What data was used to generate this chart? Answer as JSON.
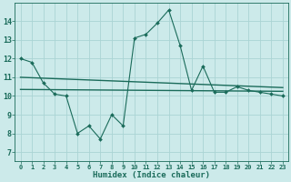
{
  "title": "",
  "xlabel": "Humidex (Indice chaleur)",
  "bg_color": "#cceaea",
  "grid_color": "#aad4d4",
  "line_color": "#1a6b5a",
  "xlim": [
    -0.5,
    23.5
  ],
  "ylim": [
    6.5,
    15.0
  ],
  "xticks": [
    0,
    1,
    2,
    3,
    4,
    5,
    6,
    7,
    8,
    9,
    10,
    11,
    12,
    13,
    14,
    15,
    16,
    17,
    18,
    19,
    20,
    21,
    22,
    23
  ],
  "yticks": [
    7,
    8,
    9,
    10,
    11,
    12,
    13,
    14
  ],
  "series1_x": [
    0,
    1,
    2,
    3,
    4,
    5,
    6,
    7,
    8,
    9,
    10,
    11,
    12,
    13,
    14,
    15,
    16,
    17,
    18,
    19,
    20,
    21,
    22,
    23
  ],
  "series1_y": [
    12.0,
    11.8,
    10.7,
    10.1,
    10.0,
    8.0,
    8.4,
    7.7,
    9.0,
    8.4,
    13.1,
    13.3,
    13.9,
    14.6,
    12.7,
    10.3,
    11.6,
    10.2,
    10.2,
    10.5,
    10.3,
    10.2,
    10.1,
    10.0
  ],
  "series2_x": [
    0,
    23
  ],
  "series2_y": [
    11.0,
    10.45
  ],
  "series3_x": [
    0,
    23
  ],
  "series3_y": [
    10.35,
    10.25
  ]
}
